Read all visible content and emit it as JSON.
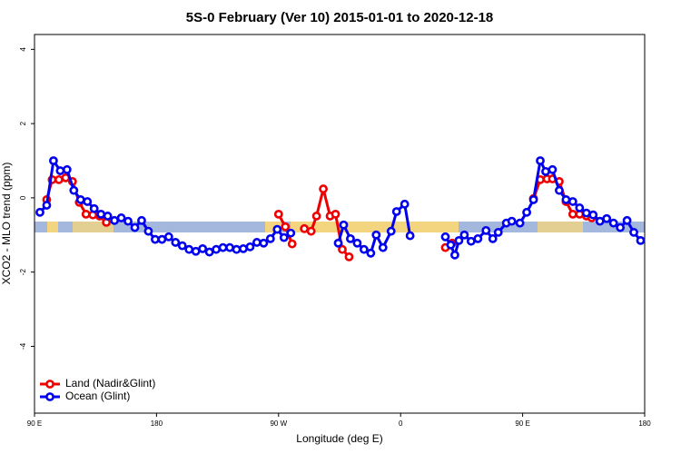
{
  "chart_data": {
    "type": "line",
    "title": "5S-0 February (Ver 10)   2015-01-01 to 2020-12-18",
    "x_label": "Longitude (deg E)",
    "y_label": "XCO2 - MLO trend (ppm)",
    "xlim": [
      90,
      540
    ],
    "ylim": [
      -5.8,
      4.4
    ],
    "xticks": [
      {
        "value": 90,
        "label": "90 E"
      },
      180,
      {
        "value": 270,
        "label": "90 W"
      },
      {
        "value": 360,
        "label": "0"
      },
      {
        "value": 450,
        "label": "90 E"
      },
      {
        "value": 540,
        "label": "180"
      }
    ],
    "yticks": [
      -4,
      -2,
      0,
      2,
      4
    ],
    "legend": "bottom-left",
    "series": [
      {
        "name": "Land (Nadir&Glint)",
        "color": "#ee0000",
        "x": [
          99,
          103,
          108,
          113,
          118,
          123,
          128,
          133,
          138,
          143,
          null,
          270,
          275,
          280,
          null,
          289,
          294,
          298,
          303,
          308,
          312,
          317,
          322,
          null,
          393,
          398,
          null,
          458,
          463,
          468,
          472,
          477,
          482,
          487,
          492,
          497,
          501
        ],
        "values": [
          -0.05,
          0.49,
          0.49,
          0.54,
          0.44,
          -0.12,
          -0.44,
          -0.46,
          -0.49,
          -0.66,
          null,
          -0.44,
          -0.78,
          -1.24,
          null,
          -0.83,
          -0.9,
          -0.49,
          0.24,
          -0.49,
          -0.44,
          -1.39,
          -1.59,
          null,
          -1.34,
          -1.22,
          null,
          -0.02,
          0.49,
          0.51,
          0.51,
          0.44,
          -0.1,
          -0.44,
          -0.44,
          -0.49,
          -0.54
        ]
      },
      {
        "name": "Ocean (Glint)",
        "color": "#0000ee",
        "x": [
          94,
          99,
          104,
          109,
          114,
          119,
          124,
          129,
          134,
          139,
          144,
          149,
          154,
          159,
          164,
          169,
          174,
          179,
          184,
          189,
          194,
          199,
          204,
          209,
          214,
          219,
          224,
          229,
          234,
          239,
          244,
          249,
          254,
          259,
          264,
          269,
          274,
          279,
          null,
          314,
          318,
          323,
          328,
          333,
          338,
          342,
          347,
          353,
          357,
          363,
          367,
          null,
          393,
          397,
          400,
          403,
          407,
          412,
          417,
          423,
          428,
          432,
          438,
          442,
          448,
          453,
          458,
          463,
          467,
          472,
          477,
          482,
          487,
          492,
          497,
          502,
          507,
          512,
          517,
          522,
          527,
          532,
          537
        ],
        "values": [
          -0.39,
          -0.2,
          1.0,
          0.73,
          0.76,
          0.2,
          -0.05,
          -0.1,
          -0.29,
          -0.44,
          -0.49,
          -0.61,
          -0.54,
          -0.63,
          -0.8,
          -0.61,
          -0.9,
          -1.12,
          -1.12,
          -1.05,
          -1.2,
          -1.29,
          -1.39,
          -1.44,
          -1.37,
          -1.46,
          -1.39,
          -1.34,
          -1.34,
          -1.39,
          -1.37,
          -1.32,
          -1.2,
          -1.22,
          -1.1,
          -0.85,
          -1.07,
          -0.95,
          null,
          -1.22,
          -0.73,
          -1.1,
          -1.22,
          -1.39,
          -1.49,
          -1.0,
          -1.34,
          -0.9,
          -0.37,
          -0.17,
          -1.02,
          null,
          -1.05,
          -1.27,
          -1.54,
          -1.15,
          -1.0,
          -1.17,
          -1.1,
          -0.88,
          -1.1,
          -0.93,
          -0.68,
          -0.63,
          -0.68,
          -0.39,
          -0.05,
          1.0,
          0.71,
          0.76,
          0.2,
          -0.05,
          -0.1,
          -0.27,
          -0.41,
          -0.46,
          -0.63,
          -0.56,
          -0.68,
          -0.8,
          -0.61,
          -0.93,
          -1.15
        ]
      }
    ]
  }
}
